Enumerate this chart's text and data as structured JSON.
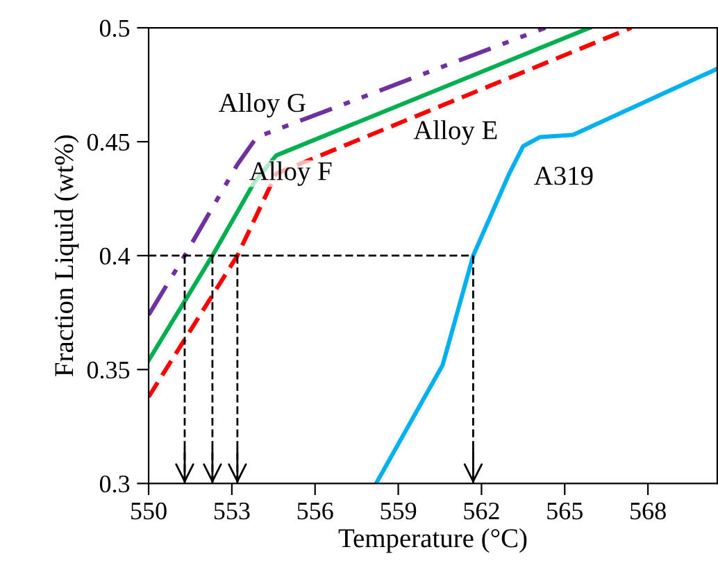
{
  "chart_data": {
    "type": "line",
    "xlabel": "Temperature (°C)",
    "ylabel": "Fraction Liquid (wt%)",
    "xlim": [
      550,
      570.5
    ],
    "xticks": [
      550,
      553,
      556,
      559,
      562,
      565,
      568
    ],
    "ylim": [
      0.3,
      0.5
    ],
    "yticks": [
      0.3,
      0.35,
      0.4,
      0.45,
      0.5
    ],
    "grid": false,
    "legend": false,
    "marker": "none",
    "series": [
      {
        "color": "#7030a0",
        "line_style": "dashdot",
        "x": [
          550,
          551.3,
          553.2,
          553.9,
          564.3
        ],
        "values": [
          0.374,
          0.4,
          0.44,
          0.452,
          0.5
        ]
      },
      {
        "color": "#00b050",
        "line_style": "solid",
        "x": [
          550,
          552.3,
          553.8,
          554.6,
          565.9
        ],
        "values": [
          0.354,
          0.4,
          0.432,
          0.444,
          0.5
        ]
      },
      {
        "color": "#ff0000",
        "line_style": "dashed",
        "x": [
          550,
          553.2,
          554.6,
          567.4
        ],
        "values": [
          0.338,
          0.4,
          0.436,
          0.5
        ]
      },
      {
        "color": "#00b0f0",
        "line_style": "solid",
        "x": [
          558.2,
          560.6,
          561.7,
          563.0,
          563.5,
          564.1,
          565.3,
          570.5
        ],
        "values": [
          0.3,
          0.352,
          0.4,
          0.436,
          0.448,
          0.452,
          0.453,
          0.482
        ]
      }
    ],
    "ref_lines": [
      {
        "axis": "y",
        "value": 0.4,
        "color": "#000000",
        "line_style": "dashed"
      },
      {
        "axis": "x",
        "value": 551.3,
        "color": "#000000",
        "line_style": "dashed"
      },
      {
        "axis": "x",
        "value": 552.3,
        "color": "#000000",
        "line_style": "dashed"
      },
      {
        "axis": "x",
        "value": 553.2,
        "color": "#000000",
        "line_style": "dashed"
      },
      {
        "axis": "x",
        "value": 561.7,
        "color": "#000000",
        "line_style": "dashed"
      }
    ],
    "annotations": [
      "Alloy G",
      "Alloy F",
      "Alloy E",
      "A319"
    ]
  }
}
